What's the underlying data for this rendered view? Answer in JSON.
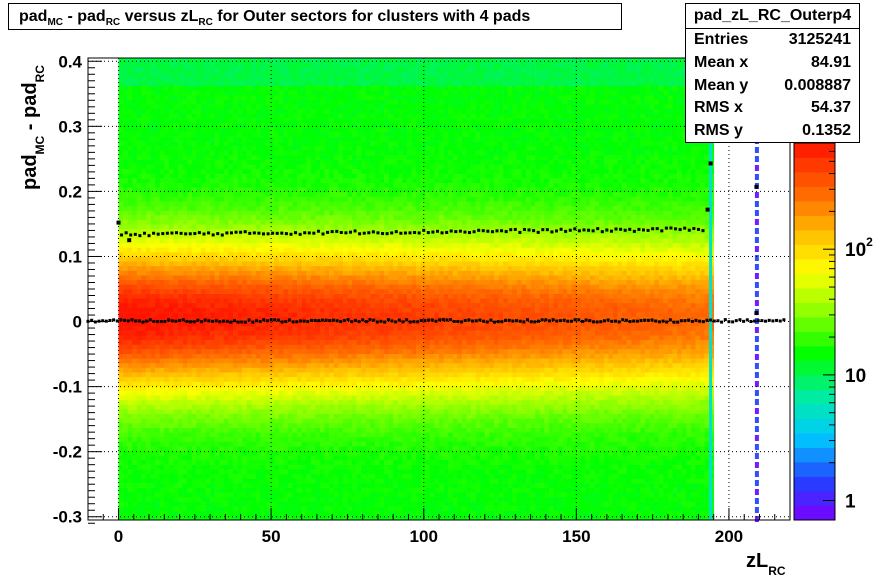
{
  "title": {
    "parts": [
      {
        "t": "pad",
        "s": "MC"
      },
      {
        "t": " - pad",
        "s": "RC"
      },
      {
        "t": " versus zL",
        "s": "RC"
      },
      {
        "t": " for Outer sectors for clusters with 4 pads",
        "s": ""
      }
    ]
  },
  "stats": {
    "name": "pad_zL_RC_Outerp4",
    "rows": [
      {
        "label": "Entries",
        "value": "3125241"
      },
      {
        "label": "Mean x",
        "value": "84.91"
      },
      {
        "label": "Mean y",
        "value": "0.008887"
      },
      {
        "label": "RMS x",
        "value": "54.37"
      },
      {
        "label": "RMS y",
        "value": "0.1352"
      }
    ]
  },
  "chart_data": {
    "type": "heatmap",
    "xlabel": "zL",
    "xlabel_sub": "RC",
    "ylabel": "pad",
    "ylabel_sub1": "MC",
    "ylabel_mid": " - pad",
    "ylabel_sub2": "RC",
    "xlim": [
      -10,
      220
    ],
    "ylim": [
      -0.305,
      0.405
    ],
    "x_ticks": [
      0,
      50,
      100,
      150,
      200
    ],
    "y_ticks": [
      -0.3,
      -0.2,
      -0.1,
      0,
      0.1,
      0.2,
      0.3,
      0.4
    ],
    "grid": true,
    "colorbar": {
      "scale": "log",
      "ticks": [
        {
          "value": 1,
          "label": "1"
        },
        {
          "value": 10,
          "label": "10"
        },
        {
          "value": 100,
          "label": "10",
          "sup": "2"
        }
      ]
    },
    "density_region": {
      "x": [
        0,
        195
      ],
      "y": [
        -0.3,
        0.4
      ]
    },
    "mean_profile": {
      "x": [
        0,
        50,
        100,
        150,
        194
      ],
      "y": [
        0.001,
        0.001,
        0.001,
        0.001,
        0.001
      ]
    },
    "rms_profile": {
      "x": [
        0,
        50,
        100,
        150,
        194
      ],
      "y": [
        0.134,
        0.136,
        0.138,
        0.14,
        0.142
      ]
    },
    "colors": {
      "low": "#00ff00",
      "mid": "#ffff00",
      "high": "#ff2a00",
      "marker": "#000000"
    }
  }
}
